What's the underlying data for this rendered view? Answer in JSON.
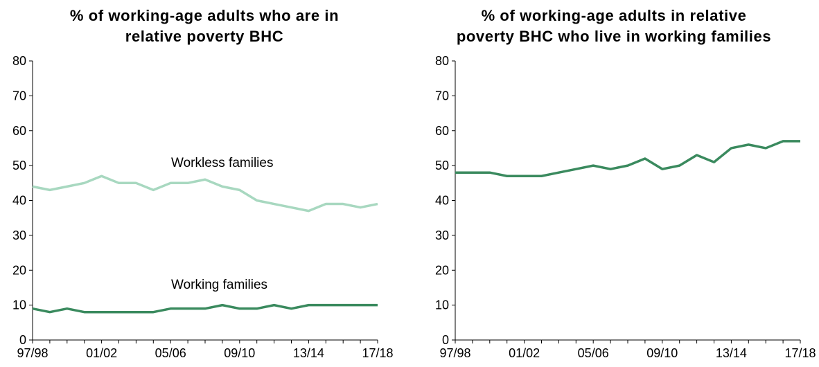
{
  "chart_data": [
    {
      "type": "line",
      "title_lines": [
        "% of working-age adults who are in",
        "relative poverty BHC"
      ],
      "ylim": [
        0,
        80
      ],
      "yticks": [
        0,
        10,
        20,
        30,
        40,
        50,
        60,
        70,
        80
      ],
      "categories": [
        "97/98",
        "98/99",
        "99/00",
        "00/01",
        "01/02",
        "02/03",
        "03/04",
        "04/05",
        "05/06",
        "06/07",
        "07/08",
        "08/09",
        "09/10",
        "10/11",
        "11/12",
        "12/13",
        "13/14",
        "14/15",
        "15/16",
        "16/17",
        "17/18"
      ],
      "xtick_labels": [
        "97/98",
        "01/02",
        "05/06",
        "09/10",
        "13/14",
        "17/18"
      ],
      "grid": false,
      "series": [
        {
          "name": "Workless families",
          "color": "#a8d8c0",
          "values": [
            44,
            43,
            44,
            45,
            47,
            45,
            45,
            43,
            45,
            45,
            46,
            44,
            43,
            40,
            39,
            38,
            37,
            39,
            39,
            38,
            39
          ]
        },
        {
          "name": "Working families",
          "color": "#3a8a5e",
          "values": [
            9,
            8,
            9,
            8,
            8,
            8,
            8,
            8,
            9,
            9,
            9,
            10,
            9,
            9,
            10,
            9,
            10,
            10,
            10,
            10,
            10
          ]
        }
      ]
    },
    {
      "type": "line",
      "title_lines": [
        "% of working-age adults in relative",
        "poverty BHC who live in working families"
      ],
      "ylim": [
        0,
        80
      ],
      "yticks": [
        0,
        10,
        20,
        30,
        40,
        50,
        60,
        70,
        80
      ],
      "categories": [
        "97/98",
        "98/99",
        "99/00",
        "00/01",
        "01/02",
        "02/03",
        "03/04",
        "04/05",
        "05/06",
        "06/07",
        "07/08",
        "08/09",
        "09/10",
        "10/11",
        "11/12",
        "12/13",
        "13/14",
        "14/15",
        "15/16",
        "16/17",
        "17/18"
      ],
      "xtick_labels": [
        "97/98",
        "01/02",
        "05/06",
        "09/10",
        "13/14",
        "17/18"
      ],
      "grid": false,
      "series": [
        {
          "name": "",
          "color": "#3a8a5e",
          "values": [
            48,
            48,
            48,
            47,
            47,
            47,
            48,
            49,
            50,
            49,
            50,
            52,
            49,
            50,
            53,
            51,
            55,
            56,
            55,
            57,
            57
          ]
        }
      ]
    }
  ]
}
